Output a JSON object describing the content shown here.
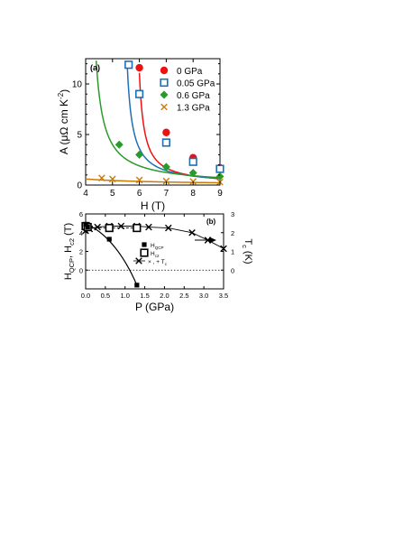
{
  "chart_data": [
    {
      "panel": "(a)",
      "type": "scatter",
      "xlabel": "H (T)",
      "ylabel_parts": [
        "A (",
        "μΩ cm K",
        "-2",
        ")"
      ],
      "xlim": [
        4,
        9
      ],
      "ylim": [
        0,
        12.5
      ],
      "xticks": [
        4,
        5,
        6,
        7,
        8,
        9
      ],
      "yticks": [
        0,
        5,
        10
      ],
      "grid": false,
      "legend_placement": "top-right",
      "series": [
        {
          "name": "0 GPa",
          "color": "#ee1111",
          "marker": "filled-circle",
          "x": [
            6.0,
            7.0,
            8.0,
            9.0
          ],
          "y": [
            11.6,
            5.2,
            2.7,
            1.7
          ],
          "fit_x0": 5.82,
          "fit_k": 2.0
        },
        {
          "name": "0.05 GPa",
          "color": "#1f6fb5",
          "marker": "open-square",
          "x": [
            5.6,
            6.0,
            7.0,
            8.0,
            9.0
          ],
          "y": [
            11.9,
            9.0,
            4.2,
            2.3,
            1.6
          ],
          "fit_x0": 5.35,
          "fit_k": 2.35
        },
        {
          "name": "0.6 GPa",
          "color": "#2a9a2a",
          "marker": "filled-diamond",
          "x": [
            5.25,
            6.0,
            7.0,
            8.0,
            9.0
          ],
          "y": [
            4.0,
            3.0,
            1.8,
            1.2,
            0.85
          ],
          "fit_x0": 4.1,
          "fit_k": 3.6
        },
        {
          "name": "1.3 GPa",
          "color": "#cc7a00",
          "marker": "x-cross",
          "x": [
            4.6,
            5.0,
            6.0,
            7.0,
            8.0,
            9.0
          ],
          "y": [
            0.7,
            0.6,
            0.5,
            0.4,
            0.35,
            0.3
          ],
          "fit_x0": 1.0,
          "fit_k": 1.8
        }
      ]
    },
    {
      "panel": "(b)",
      "type": "scatter",
      "xlabel": "P (GPa)",
      "ylabel_parts": [
        "H",
        "QCP",
        ", H",
        "c2",
        " (T)"
      ],
      "y2label_parts": [
        "T",
        "c",
        " (K)"
      ],
      "xlim": [
        0,
        3.5
      ],
      "ylim": [
        -2,
        6
      ],
      "y2lim": [
        -1,
        3
      ],
      "xticks": [
        "0.0",
        "0.5",
        "1.0",
        "1.5",
        "2.0",
        "2.5",
        "3.0",
        "3.5"
      ],
      "yticks": [
        -2,
        0,
        2,
        4,
        6
      ],
      "yticklabels": [
        "",
        "0",
        "2",
        "4",
        "6"
      ],
      "y2ticks": [
        0,
        1,
        2,
        3
      ],
      "grid": false,
      "legend_placement": "center",
      "legend": [
        {
          "marker": "filled-square",
          "label_parts": [
            "H",
            "QCP"
          ]
        },
        {
          "marker": "open-square",
          "label_parts": [
            "H",
            "c2"
          ]
        },
        {
          "marker": "x-plus-line",
          "label_parts": [
            "× , + ",
            "T",
            "c"
          ]
        }
      ],
      "series": [
        {
          "name": "H_QCP",
          "marker": "filled-square",
          "axis": "left",
          "x": [
            0.0,
            0.05,
            0.6,
            1.3
          ],
          "y": [
            4.9,
            4.6,
            3.3,
            -1.6
          ]
        },
        {
          "name": "H_c2",
          "marker": "open-square",
          "axis": "left",
          "x": [
            0.0,
            0.05,
            0.6,
            1.3
          ],
          "y": [
            4.7,
            4.6,
            4.5,
            4.5
          ]
        },
        {
          "name": "T_c",
          "marker": "x-cross",
          "axis": "right",
          "x": [
            0.0,
            0.1,
            0.3,
            0.6,
            0.9,
            1.3,
            1.6,
            2.1,
            2.7,
            3.1,
            3.5
          ],
          "y": [
            2.1,
            2.2,
            2.3,
            2.35,
            2.35,
            2.35,
            2.3,
            2.25,
            2.0,
            1.6,
            1.15
          ]
        }
      ],
      "reference_line_y": 0
    }
  ]
}
